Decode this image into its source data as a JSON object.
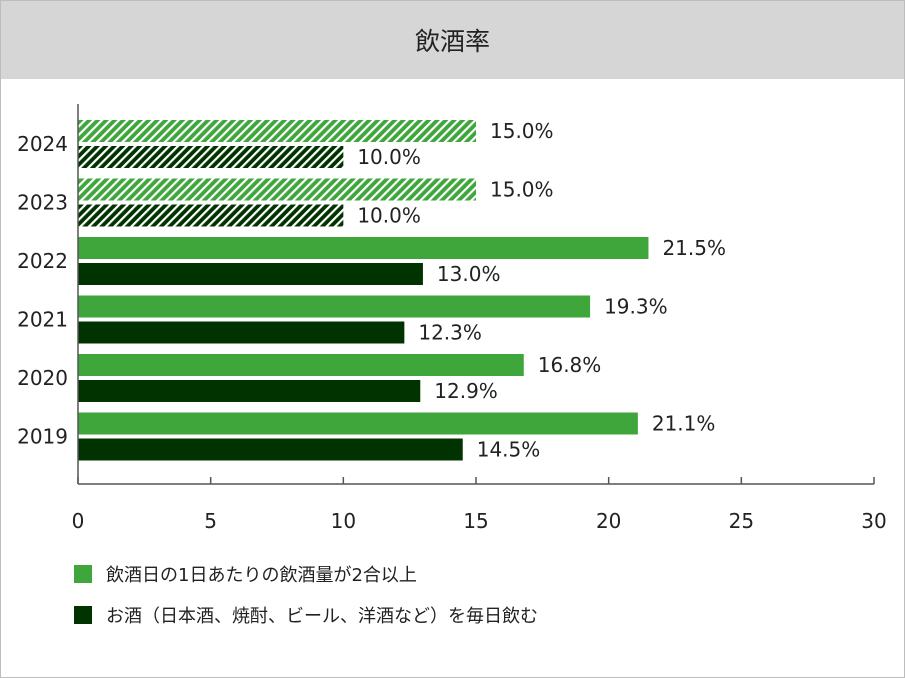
{
  "title": "飲酒率",
  "colors": {
    "green": "#3ea63b",
    "dark": "#003300",
    "axis": "#555555"
  },
  "chart_data": {
    "type": "bar",
    "orientation": "horizontal",
    "categories": [
      "2024",
      "2023",
      "2022",
      "2021",
      "2020",
      "2019"
    ],
    "series": [
      {
        "name": "飲酒日の1日あたりの飲酒量が2合以上",
        "values": [
          15.0,
          15.0,
          21.5,
          19.3,
          16.8,
          21.1
        ],
        "labels": [
          "15.0%",
          "15.0%",
          "21.5%",
          "19.3%",
          "16.8%",
          "21.1%"
        ],
        "hatched": [
          true,
          true,
          false,
          false,
          false,
          false
        ]
      },
      {
        "name": "お酒（日本酒、焼酎、ビール、洋酒など）を毎日飲む",
        "values": [
          10.0,
          10.0,
          13.0,
          12.3,
          12.9,
          14.5
        ],
        "labels": [
          "10.0%",
          "10.0%",
          "13.0%",
          "12.3%",
          "12.9%",
          "14.5%"
        ],
        "hatched": [
          true,
          true,
          false,
          false,
          false,
          false
        ]
      }
    ],
    "xlim": [
      0,
      30
    ],
    "xticks": [
      "0",
      "5",
      "10",
      "15",
      "20",
      "25",
      "30"
    ],
    "grid": false,
    "legend": "bottom-left"
  }
}
